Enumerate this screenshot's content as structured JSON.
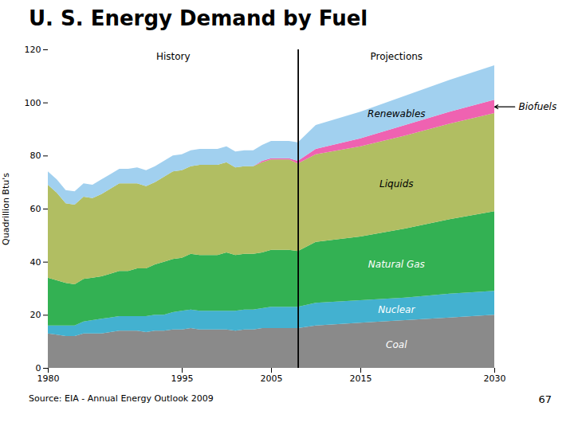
{
  "chart_data": {
    "type": "area",
    "stacked": true,
    "title": "U. S. Energy Demand by Fuel",
    "ylabel": "Quadrillion Btu's",
    "x": [
      1980,
      1981,
      1982,
      1983,
      1984,
      1985,
      1986,
      1987,
      1988,
      1989,
      1990,
      1991,
      1992,
      1993,
      1994,
      1995,
      1996,
      1997,
      1998,
      1999,
      2000,
      2001,
      2002,
      2003,
      2004,
      2005,
      2006,
      2007,
      2008,
      2010,
      2015,
      2020,
      2025,
      2030
    ],
    "series": [
      {
        "name": "Coal",
        "color": "#808080",
        "values": [
          13,
          12.5,
          12,
          12,
          13,
          13,
          13,
          13.5,
          14,
          14,
          14,
          13.5,
          14,
          14,
          14.5,
          14.5,
          15,
          14.5,
          14.5,
          14.5,
          14.5,
          14,
          14.5,
          14.5,
          15,
          15,
          15,
          15,
          15,
          16,
          17,
          18,
          19,
          20
        ]
      },
      {
        "name": "Nuclear",
        "color": "#33aacc",
        "values": [
          3,
          3.5,
          4,
          4,
          4.5,
          5,
          5.5,
          5.5,
          5.5,
          5.5,
          5.5,
          6,
          6,
          6,
          6.5,
          7,
          7,
          7,
          7,
          7,
          7,
          7.5,
          7.5,
          7.5,
          7.5,
          8,
          8,
          8,
          8,
          8.5,
          8.5,
          8.5,
          9,
          9
        ]
      },
      {
        "name": "Natural Gas",
        "color": "#22aa44",
        "values": [
          18,
          17,
          16,
          15.5,
          16,
          16,
          16,
          16.5,
          17,
          17,
          18,
          18,
          19,
          20,
          20,
          20,
          21,
          21,
          21,
          21,
          22,
          21,
          21,
          21,
          21,
          21.5,
          21.5,
          21.5,
          21,
          23,
          24,
          26,
          28,
          30
        ]
      },
      {
        "name": "Liquids",
        "color": "#aab855",
        "values": [
          35,
          33,
          30,
          30,
          31,
          30,
          31,
          32,
          33,
          33,
          32,
          31,
          31,
          32,
          33,
          33,
          33,
          34,
          34,
          34,
          34,
          33,
          33,
          33,
          34,
          34,
          34,
          34,
          33,
          33,
          34,
          35,
          36,
          37
        ]
      },
      {
        "name": "Biofuels",
        "color": "#ee55aa",
        "values": [
          0,
          0,
          0,
          0,
          0,
          0,
          0,
          0,
          0,
          0,
          0,
          0,
          0,
          0,
          0,
          0,
          0,
          0,
          0,
          0,
          0,
          0,
          0,
          0,
          0.5,
          0.5,
          0.5,
          0.5,
          1,
          2,
          3,
          4,
          4.5,
          5
        ]
      },
      {
        "name": "Renewables",
        "color": "#99ccee",
        "values": [
          5,
          5,
          5,
          5,
          5,
          5,
          5.5,
          5.5,
          5.5,
          5.5,
          6,
          6,
          6,
          6,
          6,
          6,
          6,
          6,
          6,
          6,
          6,
          6,
          6,
          6,
          6,
          6.5,
          6.5,
          6.5,
          7,
          9,
          10,
          11,
          12,
          13
        ]
      }
    ],
    "xlim": [
      1980,
      2030
    ],
    "xticks": [
      1980,
      1995,
      2005,
      2015,
      2030
    ],
    "ylim": [
      0,
      120
    ],
    "yticks": [
      0,
      20,
      40,
      60,
      80,
      100,
      120
    ],
    "grid": false,
    "divider_x": 2008,
    "annotations": [
      "History",
      "Projections"
    ],
    "source": "Source: EIA - Annual Energy Outlook 2009",
    "page_number": "67"
  }
}
